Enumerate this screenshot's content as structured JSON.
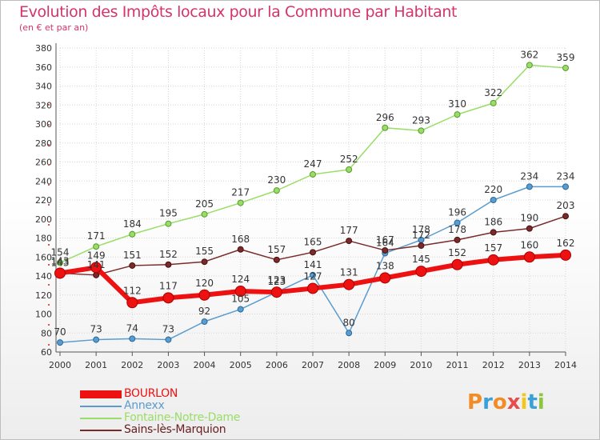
{
  "logo_text": "Proxiti",
  "logo_colors": [
    "#f28c28",
    "#3aa0d8",
    "#f28c28",
    "#e84d4d",
    "#f5c518",
    "#3aa0d8",
    "#8cc63f"
  ],
  "chart_data": {
    "type": "line",
    "title": "Evolution des Impôts locaux pour la Commune par Habitant",
    "subtitle": "(en € et par an)",
    "xlabel": "",
    "ylabel": "",
    "x": [
      "2000",
      "2001",
      "2002",
      "2003",
      "2004",
      "2005",
      "2006",
      "2007",
      "2008",
      "2009",
      "2010",
      "2011",
      "2012",
      "2013",
      "2014"
    ],
    "ylim": [
      60,
      380
    ],
    "yticks": [
      60,
      80,
      100,
      120,
      140,
      160,
      180,
      200,
      220,
      240,
      260,
      280,
      300,
      320,
      340,
      360,
      380
    ],
    "grid": true,
    "legend": "bottom-left",
    "series": [
      {
        "name": "Fontaine-Notre-Dame",
        "color": "#99dd66",
        "values": [
          154,
          171,
          184,
          195,
          205,
          217,
          230,
          247,
          252,
          296,
          293,
          310,
          322,
          362,
          359
        ]
      },
      {
        "name": "Annexx",
        "color": "#5a9ccf",
        "values": [
          70,
          73,
          74,
          73,
          92,
          105,
          123,
          141,
          80,
          164,
          178,
          196,
          220,
          234,
          234
        ]
      },
      {
        "name": "Sains-lès-Marquion",
        "color": "#7a2a2a",
        "values": [
          143,
          141,
          151,
          152,
          155,
          168,
          157,
          165,
          177,
          167,
          172,
          178,
          186,
          190,
          203
        ]
      },
      {
        "name": "BOURLON",
        "color": "#ee1111",
        "values": [
          143,
          149,
          112,
          117,
          120,
          124,
          123,
          127,
          131,
          138,
          145,
          152,
          157,
          160,
          162
        ]
      }
    ]
  }
}
